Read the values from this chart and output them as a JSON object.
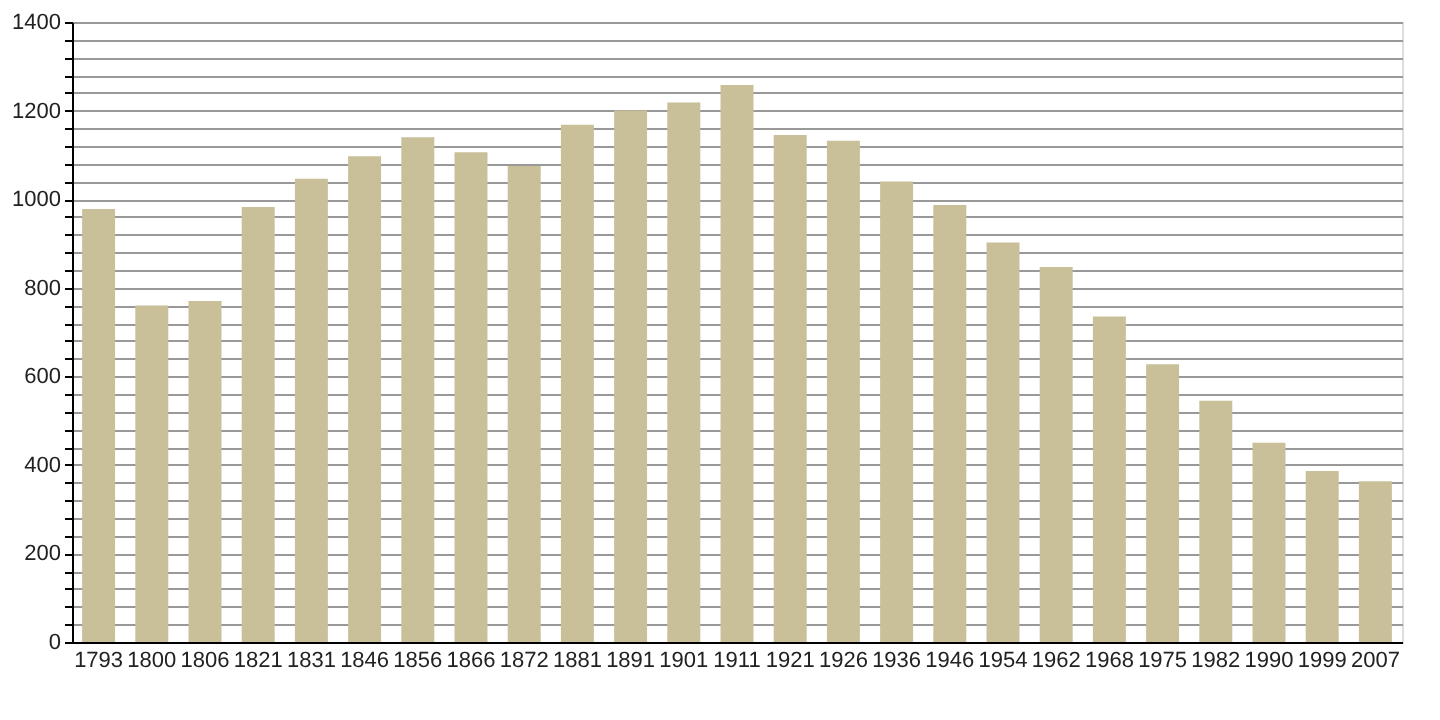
{
  "chart_data": {
    "type": "bar",
    "categories": [
      "1793",
      "1800",
      "1806",
      "1821",
      "1831",
      "1846",
      "1856",
      "1866",
      "1872",
      "1881",
      "1891",
      "1901",
      "1911",
      "1921",
      "1926",
      "1936",
      "1946",
      "1954",
      "1962",
      "1968",
      "1975",
      "1982",
      "1990",
      "1999",
      "2007"
    ],
    "values": [
      978,
      760,
      770,
      982,
      1046,
      1097,
      1140,
      1106,
      1075,
      1168,
      1200,
      1218,
      1258,
      1145,
      1132,
      1040,
      987,
      902,
      847,
      735,
      627,
      545,
      450,
      386,
      363
    ],
    "color": "#c9c09a",
    "ylim": [
      0,
      1400
    ],
    "yticks": [
      0,
      {
        "value": 40,
        "label": null
      },
      {
        "value": 80,
        "label": null
      },
      {
        "value": 120,
        "label": null
      },
      {
        "value": 160,
        "label": null
      },
      200,
      {
        "value": 240,
        "label": null
      },
      {
        "value": 280,
        "label": null
      },
      {
        "value": 320,
        "label": null
      },
      {
        "value": 360,
        "label": null
      },
      400,
      {
        "value": 440,
        "label": null
      },
      {
        "value": 480,
        "label": null
      },
      {
        "value": 520,
        "label": null
      },
      {
        "value": 560,
        "label": null
      },
      600,
      {
        "value": 640,
        "label": null
      },
      {
        "value": 680,
        "label": null
      },
      {
        "value": 720,
        "label": null
      },
      {
        "value": 760,
        "label": null
      },
      800,
      {
        "value": 840,
        "label": null
      },
      {
        "value": 880,
        "label": null
      },
      {
        "value": 920,
        "label": null
      },
      {
        "value": 960,
        "label": null
      },
      1000,
      {
        "value": 1040,
        "label": null
      },
      {
        "value": 1080,
        "label": null
      },
      {
        "value": 1120,
        "label": null
      },
      {
        "value": 1160,
        "label": null
      },
      1200,
      {
        "value": 1240,
        "label": null
      },
      {
        "value": 1280,
        "label": null
      },
      {
        "value": 1320,
        "label": null
      },
      {
        "value": 1360,
        "label": null
      },
      1400
    ],
    "grid": "y"
  }
}
